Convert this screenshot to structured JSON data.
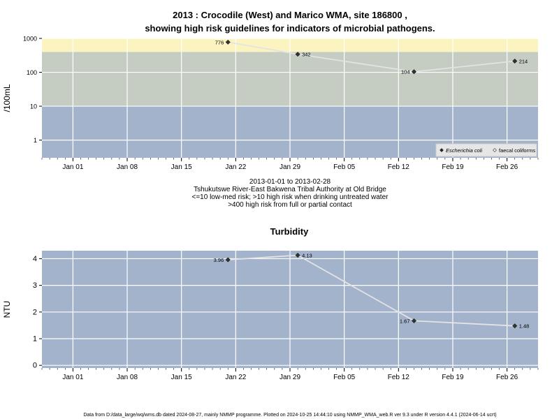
{
  "header": {
    "title_line1": "2013 : Crocodile (West) and Marico WMA, site 186800 ,",
    "title_line2": "showing high risk guidelines for indicators of microbial pathogens."
  },
  "info": {
    "line1": "2013-01-01 to 2013-02-28",
    "line2": "Tshukutswe River-East Bakwena Tribal Authority at Old Bridge",
    "line3": "<=10 low-med risk; >10 high risk when drinking untreated water",
    "line4": ">400 high risk from full or partial contact"
  },
  "footer": {
    "text": "Data from D:/data_large/wq/wms.db dated 2024-08-27, mainly NMMP programme. Plotted on 2024-10-25 14:44:10 using NMMP_WMA_web.R ver 9.3 under R version 4.4.1 (2024-06-14 ucrt)"
  },
  "colors": {
    "band_low": "#a3b3cc",
    "band_mid": "#c5ccc2",
    "band_high": "#fbf4c0",
    "gridline": "#ffffff",
    "series_line": "#e3e3e3",
    "marker": "#333333"
  },
  "chart_data": [
    {
      "type": "line",
      "title": "",
      "xlabel": "",
      "ylabel": "/100mL",
      "y_scale": "log",
      "ylim": [
        0.3,
        1000
      ],
      "xlim": [
        "2012-12-28",
        "2013-03-02"
      ],
      "yticks": [
        1,
        10,
        100,
        1000
      ],
      "ytick_labels": [
        "1",
        "10",
        "100",
        "1000"
      ],
      "xticks": [
        "2013-01-01",
        "2013-01-08",
        "2013-01-15",
        "2013-01-22",
        "2013-01-29",
        "2013-02-05",
        "2013-02-12",
        "2013-02-19",
        "2013-02-26"
      ],
      "xtick_labels": [
        "Jan 01",
        "Jan 08",
        "Jan 15",
        "Jan 22",
        "Jan 29",
        "Feb 05",
        "Feb 12",
        "Feb 19",
        "Feb 26"
      ],
      "bands": [
        {
          "from": 0.3,
          "to": 10,
          "color": "#a3b3cc"
        },
        {
          "from": 10,
          "to": 400,
          "color": "#c5ccc2"
        },
        {
          "from": 400,
          "to": 1000,
          "color": "#fbf4c0"
        }
      ],
      "grid": true,
      "legend_position": "bottom-right",
      "legend": [
        {
          "label": "Escherichia coli",
          "marker": "diamond-filled",
          "italic": true
        },
        {
          "label": "faecal coliforms",
          "marker": "diamond-open",
          "italic": false
        }
      ],
      "series": [
        {
          "name": "Escherichia coli",
          "x": [
            "2013-01-21",
            "2013-01-30",
            "2013-02-14",
            "2013-02-27"
          ],
          "y": [
            776,
            342,
            104,
            214
          ],
          "labels": [
            "776",
            "342",
            "104",
            "214"
          ],
          "label_side": [
            "left",
            "right",
            "left",
            "right"
          ]
        }
      ]
    },
    {
      "type": "line",
      "title": "Turbidity",
      "xlabel": "",
      "ylabel": "NTU",
      "y_scale": "linear",
      "ylim": [
        -0.1,
        4.3
      ],
      "xlim": [
        "2012-12-28",
        "2013-03-02"
      ],
      "yticks": [
        0,
        1,
        2,
        3,
        4
      ],
      "ytick_labels": [
        "0",
        "1",
        "2",
        "3",
        "4"
      ],
      "xticks": [
        "2013-01-01",
        "2013-01-08",
        "2013-01-15",
        "2013-01-22",
        "2013-01-29",
        "2013-02-05",
        "2013-02-12",
        "2013-02-19",
        "2013-02-26"
      ],
      "xtick_labels": [
        "Jan 01",
        "Jan 08",
        "Jan 15",
        "Jan 22",
        "Jan 29",
        "Feb 05",
        "Feb 12",
        "Feb 19",
        "Feb 26"
      ],
      "bands": [
        {
          "from": -0.1,
          "to": 4.3,
          "color": "#a3b3cc"
        }
      ],
      "grid": true,
      "series": [
        {
          "name": "",
          "x": [
            "2013-01-21",
            "2013-01-30",
            "2013-02-14",
            "2013-02-27"
          ],
          "y": [
            3.96,
            4.13,
            1.67,
            1.48
          ],
          "labels": [
            "3.96",
            "4.13",
            "1.67",
            "1.48"
          ],
          "label_side": [
            "left",
            "right",
            "left",
            "right"
          ]
        }
      ]
    }
  ]
}
